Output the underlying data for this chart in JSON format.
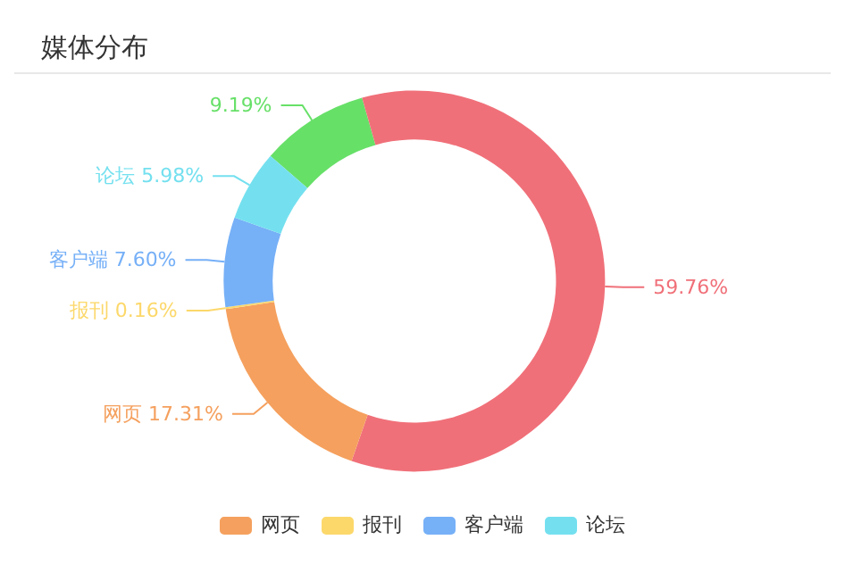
{
  "chart_data": {
    "type": "donut",
    "title": "媒体分布",
    "categories": [
      null,
      null,
      "网页",
      "报刊",
      "客户端",
      "论坛"
    ],
    "values": [
      9.19,
      59.76,
      17.31,
      0.16,
      7.6,
      5.98
    ],
    "value_labels": [
      "9.19%",
      "59.76%",
      "17.31%",
      "0.16%",
      "7.60%",
      "5.98%"
    ],
    "colors": [
      "#67e068",
      "#f07079",
      "#f5a05e",
      "#fcd86b",
      "#76b0f7",
      "#74e0ef"
    ],
    "legend": "bottom"
  }
}
